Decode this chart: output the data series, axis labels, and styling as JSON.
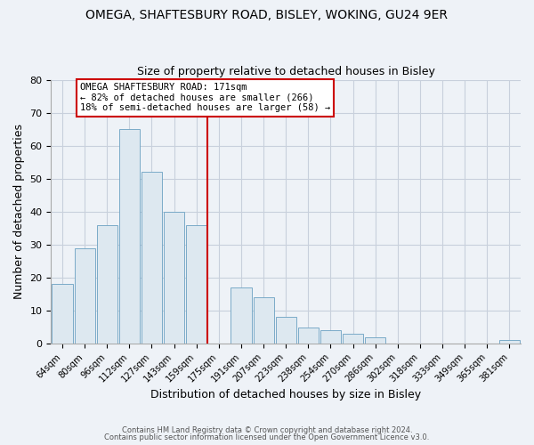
{
  "title": "OMEGA, SHAFTESBURY ROAD, BISLEY, WOKING, GU24 9ER",
  "subtitle": "Size of property relative to detached houses in Bisley",
  "xlabel": "Distribution of detached houses by size in Bisley",
  "ylabel": "Number of detached properties",
  "bar_color": "#dde8f0",
  "bar_edge_color": "#7aaac8",
  "categories": [
    "64sqm",
    "80sqm",
    "96sqm",
    "112sqm",
    "127sqm",
    "143sqm",
    "159sqm",
    "175sqm",
    "191sqm",
    "207sqm",
    "223sqm",
    "238sqm",
    "254sqm",
    "270sqm",
    "286sqm",
    "302sqm",
    "318sqm",
    "333sqm",
    "349sqm",
    "365sqm",
    "381sqm"
  ],
  "values": [
    18,
    29,
    36,
    65,
    52,
    40,
    36,
    0,
    17,
    14,
    8,
    5,
    4,
    3,
    2,
    0,
    0,
    0,
    0,
    0,
    1
  ],
  "vline_color": "#cc0000",
  "annotation_title": "OMEGA SHAFTESBURY ROAD: 171sqm",
  "annotation_line1": "← 82% of detached houses are smaller (266)",
  "annotation_line2": "18% of semi-detached houses are larger (58) →",
  "footer1": "Contains HM Land Registry data © Crown copyright and database right 2024.",
  "footer2": "Contains public sector information licensed under the Open Government Licence v3.0.",
  "ylim": [
    0,
    80
  ],
  "yticks": [
    0,
    10,
    20,
    30,
    40,
    50,
    60,
    70,
    80
  ],
  "background_color": "#eef2f7",
  "plot_bg_color": "#eef2f7",
  "grid_color": "#c8d0dc",
  "title_fontsize": 10,
  "subtitle_fontsize": 9
}
